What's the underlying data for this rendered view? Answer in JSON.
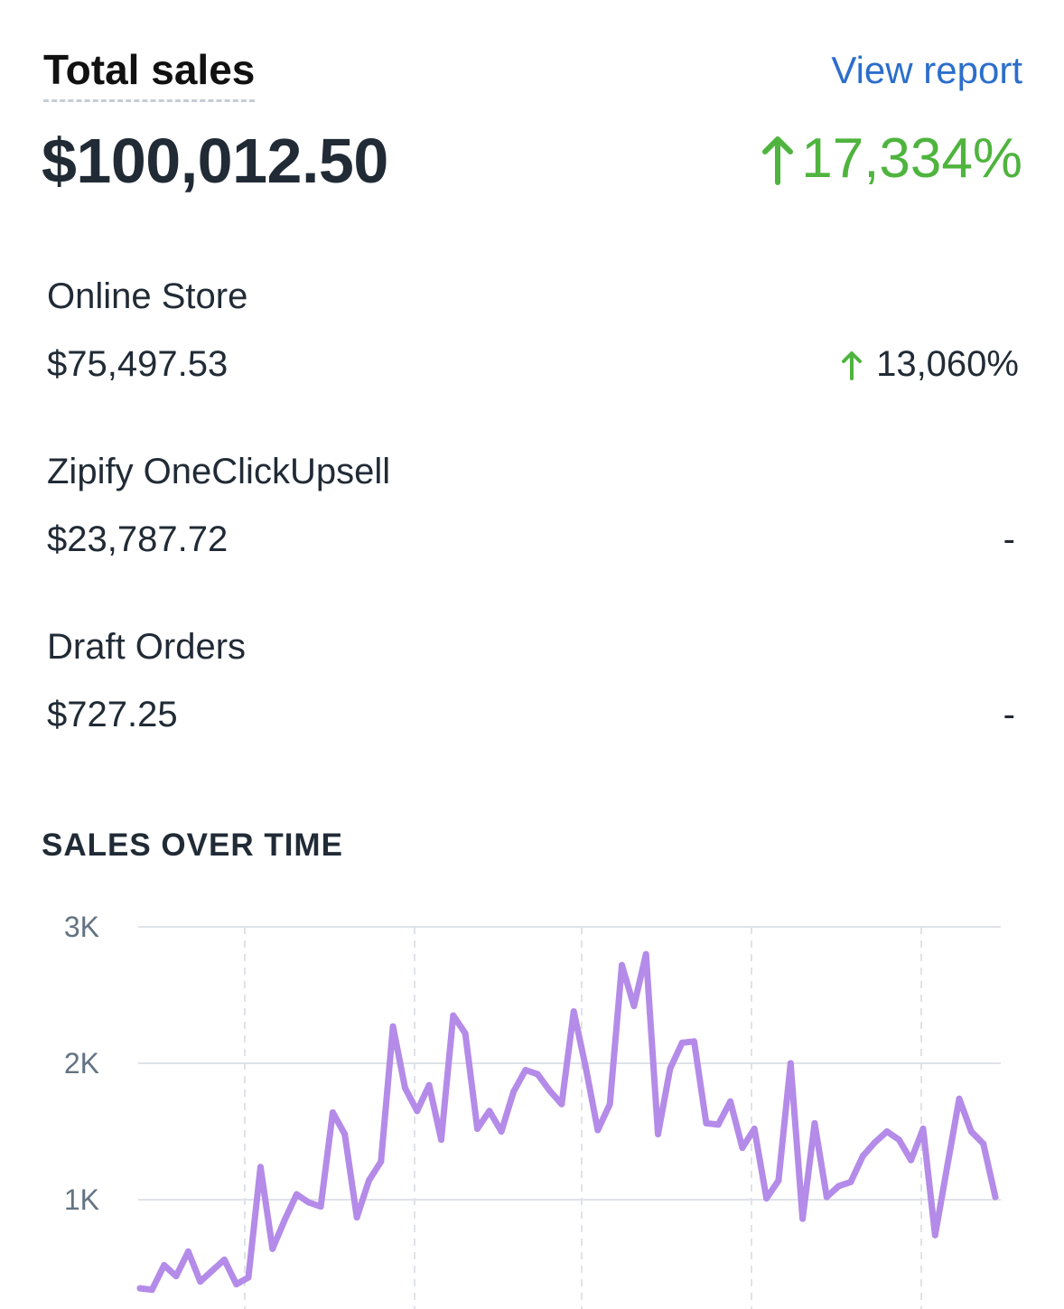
{
  "header": {
    "title": "Total sales",
    "view_report": "View report",
    "total_amount": "$100,012.50",
    "total_change": "17,334%",
    "positive_color": "#4fb43e",
    "link_color": "#2c6ecb"
  },
  "channels": [
    {
      "name": "Online Store",
      "value": "$75,497.53",
      "change": "13,060%"
    },
    {
      "name": "Zipify OneClickUpsell",
      "value": "$23,787.72",
      "change": "-"
    },
    {
      "name": "Draft Orders",
      "value": "$727.25",
      "change": "-"
    }
  ],
  "section_title": "SALES OVER TIME",
  "chart_data": {
    "type": "line",
    "line_color": "#b48be8",
    "grid": true,
    "ylim": [
      0,
      3000
    ],
    "y_ticks": [
      {
        "value": 3000,
        "label": "3K"
      },
      {
        "value": 2000,
        "label": "2K"
      },
      {
        "value": 1000,
        "label": "1K"
      }
    ],
    "series": [
      {
        "values": [
          350,
          340,
          520,
          440,
          620,
          400,
          480,
          560,
          380,
          430,
          1240,
          640,
          850,
          1040,
          980,
          950,
          1640,
          1480,
          870,
          1140,
          1280,
          2270,
          1820,
          1650,
          1840,
          1440,
          2350,
          2220,
          1520,
          1650,
          1500,
          1790,
          1950,
          1920,
          1800,
          1700,
          2380,
          1970,
          1510,
          1700,
          2720,
          2420,
          2800,
          1480,
          1960,
          2150,
          2160,
          1560,
          1550,
          1720,
          1380,
          1520,
          1010,
          1140,
          2000,
          860,
          1560,
          1020,
          1100,
          1130,
          1320,
          1420,
          1500,
          1440,
          1290,
          1520,
          740,
          1240,
          1740,
          1500,
          1410,
          1020
        ]
      }
    ]
  }
}
